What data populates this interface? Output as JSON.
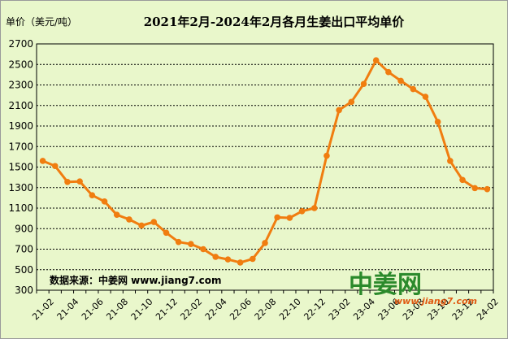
{
  "chart_data": {
    "type": "line",
    "title": "2021年2月-2024年2月各月生姜出口平均单价",
    "ylabel": "单价（美元/吨）",
    "xlabel": "",
    "ylim": [
      300,
      2700
    ],
    "yticks": [
      300,
      500,
      700,
      900,
      1100,
      1300,
      1500,
      1700,
      1900,
      2100,
      2300,
      2500,
      2700
    ],
    "grid": true,
    "legend": "none",
    "x": [
      "21-02",
      "21-03",
      "21-04",
      "21-05",
      "21-06",
      "21-07",
      "21-08",
      "21-09",
      "21-10",
      "21-11",
      "21-12",
      "22-01",
      "22-02",
      "22-03",
      "22-04",
      "22-05",
      "22-06",
      "22-07",
      "22-08",
      "22-09",
      "22-10",
      "22-11",
      "22-12",
      "23-01",
      "23-02",
      "23-03",
      "23-04",
      "23-05",
      "23-06",
      "23-07",
      "23-08",
      "23-09",
      "23-10",
      "23-11",
      "23-12",
      "24-01",
      "24-02"
    ],
    "xtick_labels": [
      "21-02",
      "21-04",
      "21-06",
      "21-08",
      "21-10",
      "21-12",
      "22-02",
      "22-04",
      "22-06",
      "22-08",
      "22-10",
      "22-12",
      "23-02",
      "23-04",
      "23-06",
      "23-08",
      "23-10",
      "23-12",
      "24-02"
    ],
    "series": [
      {
        "color": "#f07d10",
        "values": [
          1560,
          1510,
          1355,
          1360,
          1225,
          1165,
          1035,
          990,
          930,
          965,
          860,
          770,
          750,
          700,
          625,
          600,
          570,
          605,
          760,
          1010,
          1005,
          1070,
          1100,
          1610,
          2055,
          2135,
          2310,
          2540,
          2425,
          2340,
          2260,
          2185,
          1940,
          1560,
          1375,
          1295,
          1285
        ]
      }
    ],
    "annotation": "数据来源：中姜网 www.jiang7.com"
  },
  "watermark": {
    "brand": "中姜网",
    "site": "www.jiang7.com",
    "color": "#2b8a2b"
  }
}
